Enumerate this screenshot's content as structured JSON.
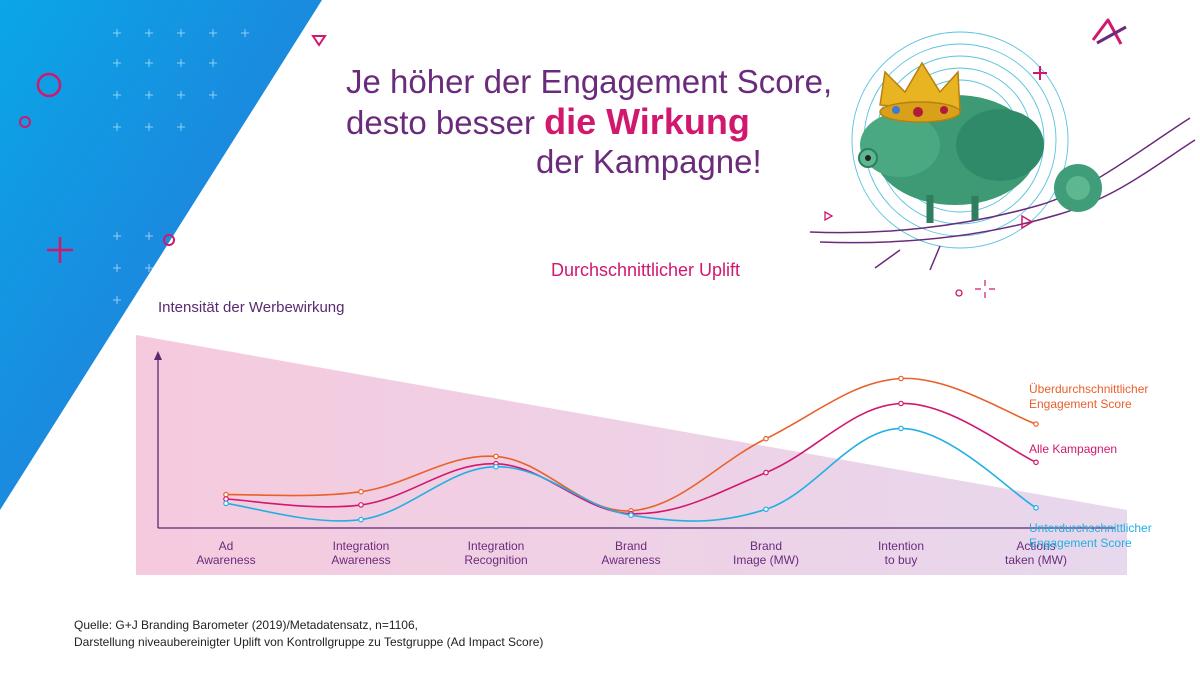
{
  "headline": {
    "line1": "Je höher der Engagement Score,",
    "line2_pre": "desto besser ",
    "line2_accent": "die Wirkung",
    "line3": "der Kampagne!"
  },
  "colors": {
    "purple": "#6b2b7c",
    "magenta": "#d1176e",
    "orange": "#e9602a",
    "cyan": "#22b0e3",
    "blue_band": "#1f8fe0"
  },
  "chart_data": {
    "type": "line",
    "title": "Durchschnittlicher Uplift",
    "ylabel": "Intensität der Werbewirkung",
    "xlabel": "",
    "categories": [
      "Ad\nAwareness",
      "Integration\nAwareness",
      "Integration\nRecognition",
      "Brand\nAwareness",
      "Brand\nImage (MW)",
      "Intention\nto buy",
      "Actions\ntaken (MW)"
    ],
    "ylim": [
      0,
      100
    ],
    "grid": false,
    "legend_position": "right",
    "series": [
      {
        "name": "Überdurchschnittlicher\nEngagement Score",
        "color": "#e9602a",
        "values": [
          20,
          22,
          46,
          9,
          58,
          99,
          68
        ]
      },
      {
        "name": "Alle Kampagnen",
        "color": "#d1176e",
        "values": [
          17,
          13,
          41,
          7,
          35,
          82,
          42
        ]
      },
      {
        "name": "Unterdurchschnittlicher\nEngagement Score",
        "color": "#22b0e3",
        "values": [
          14,
          3,
          39,
          6,
          10,
          65,
          11
        ]
      }
    ]
  },
  "footer": {
    "source_line1": "Quelle: G+J Branding Barometer (2019)/Metadatensatz, n=1106,",
    "source_line2": "Darstellung niveaubereinigter Uplift von Kontrollgruppe zu Testgruppe (Ad Impact Score)"
  },
  "icons": [
    "brand-logo-icon",
    "chameleon-with-crown-illustration",
    "crown-icon"
  ]
}
